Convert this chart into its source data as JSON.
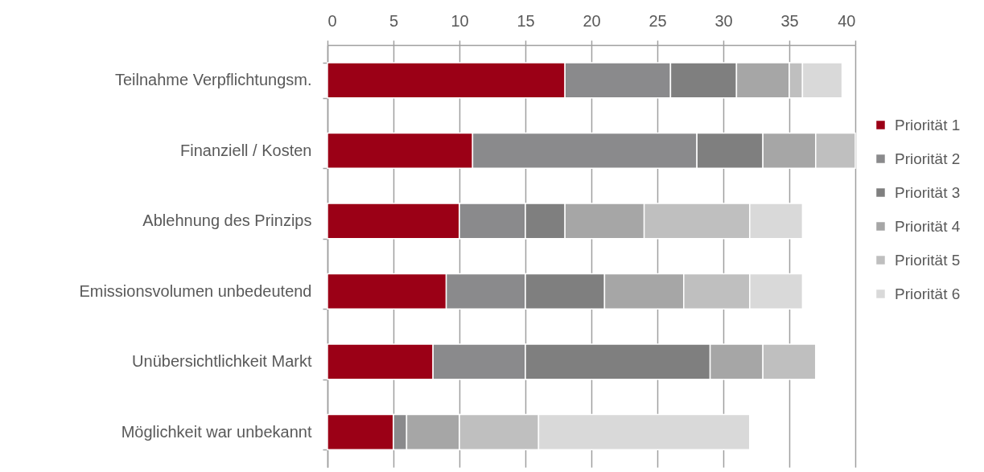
{
  "chart_data": {
    "type": "bar",
    "orientation": "horizontal",
    "stacked": true,
    "categories": [
      "Teilnahme Verpflichtungsm.",
      "Finanziell / Kosten",
      "Ablehnung des Prinzips",
      "Emissionsvolumen unbedeutend",
      "Unübersichtlichkeit Markt",
      "Möglichkeit war unbekannt"
    ],
    "series": [
      {
        "name": "Priorität 1",
        "color": "#9b0016",
        "values": [
          18,
          11,
          10,
          9,
          8,
          5
        ]
      },
      {
        "name": "Priorität 2",
        "color": "#8a8a8c",
        "values": [
          8,
          17,
          5,
          6,
          7,
          1
        ]
      },
      {
        "name": "Priorität 3",
        "color": "#7f7f7f",
        "values": [
          5,
          5,
          3,
          6,
          14,
          null
        ]
      },
      {
        "name": "Priorität 4",
        "color": "#a6a6a6",
        "values": [
          4,
          4,
          6,
          6,
          4,
          4
        ]
      },
      {
        "name": "Priorität 5",
        "color": "#bfbfbf",
        "values": [
          1,
          3,
          8,
          5,
          4,
          6
        ]
      },
      {
        "name": "Priorität 6",
        "color": "#d9d9d9",
        "values": [
          3,
          null,
          4,
          4,
          null,
          16
        ]
      }
    ],
    "xlim": [
      0,
      40
    ],
    "xticks": [
      0,
      5,
      10,
      15,
      20,
      25,
      30,
      35,
      40
    ],
    "grid": "x",
    "legend": "right"
  }
}
